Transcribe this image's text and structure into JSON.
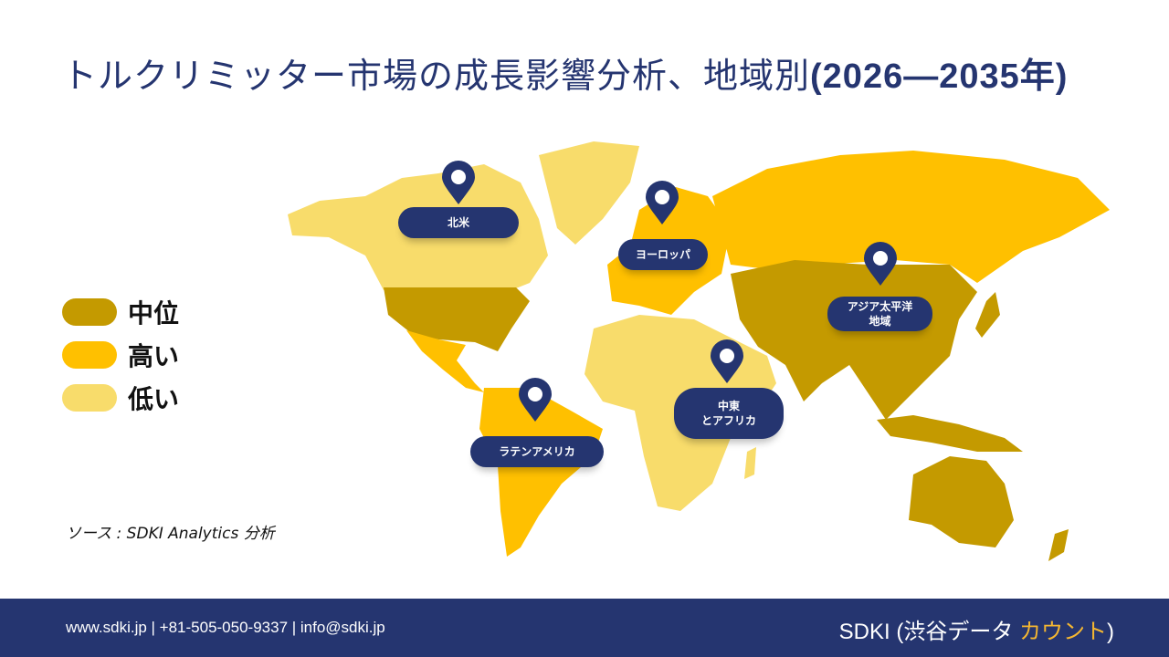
{
  "title": {
    "main": "トルクリミッター市場の成長影響分析、地域別",
    "years": "(2026—2035年)"
  },
  "legend": [
    {
      "label": "中位",
      "color": "#C49A00"
    },
    {
      "label": "高い",
      "color": "#FFC000"
    },
    {
      "label": "低い",
      "color": "#F8DC6B"
    }
  ],
  "regions": [
    {
      "label": "北米",
      "level": "低い"
    },
    {
      "label": "ヨーロッパ",
      "level": "高い"
    },
    {
      "label": "アジア太平洋\n地域",
      "level": "中位"
    },
    {
      "label": "中東\nとアフリカ",
      "level": "低い"
    },
    {
      "label": "ラテンアメリカ",
      "level": "高い"
    }
  ],
  "source": "ソース : SDKI Analytics 分析",
  "footer": {
    "contact": "www.sdki.jp | +81-505-050-9337 | info@sdki.jp",
    "brand_prefix": "SDKI (渋谷データ ",
    "brand_accent": "カウント",
    "brand_suffix": ")"
  },
  "colors": {
    "navy": "#253570",
    "mid": "#C49A00",
    "high": "#FFC000",
    "low": "#F8DC6B",
    "accent": "#F5B731"
  }
}
